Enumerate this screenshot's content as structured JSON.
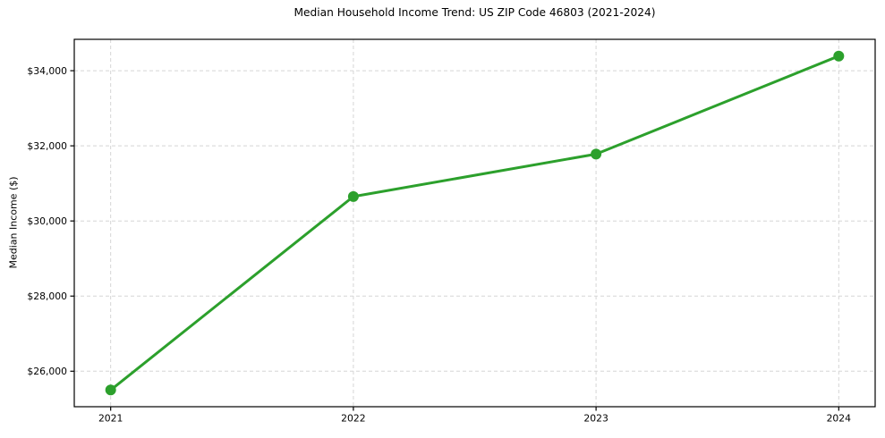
{
  "chart_data": {
    "type": "line",
    "title": "Median Household Income Trend: US ZIP Code 46803 (2021-2024)",
    "xlabel": "",
    "ylabel": "Median Income ($)",
    "x": [
      2021,
      2022,
      2023,
      2024
    ],
    "x_tick_labels": [
      "2021",
      "2022",
      "2023",
      "2024"
    ],
    "y_ticks": [
      26000,
      28000,
      30000,
      32000,
      34000
    ],
    "y_tick_labels": [
      "$26,000",
      "$28,000",
      "$30,000",
      "$32,000",
      "$34,000"
    ],
    "series": [
      {
        "name": "Median Household Income",
        "values": [
          25500,
          30650,
          31780,
          34390
        ],
        "color": "#2ca02c",
        "marker": "circle"
      }
    ],
    "xlim": [
      2020.85,
      2024.15
    ],
    "ylim": [
      25055,
      34835
    ],
    "grid": true,
    "grid_style": "dashed",
    "legend_position": "none",
    "colors": {
      "background": "#ffffff",
      "grid": "#d5d5d5",
      "axis": "#000000",
      "text": "#000000",
      "line": "#2ca02c"
    }
  }
}
